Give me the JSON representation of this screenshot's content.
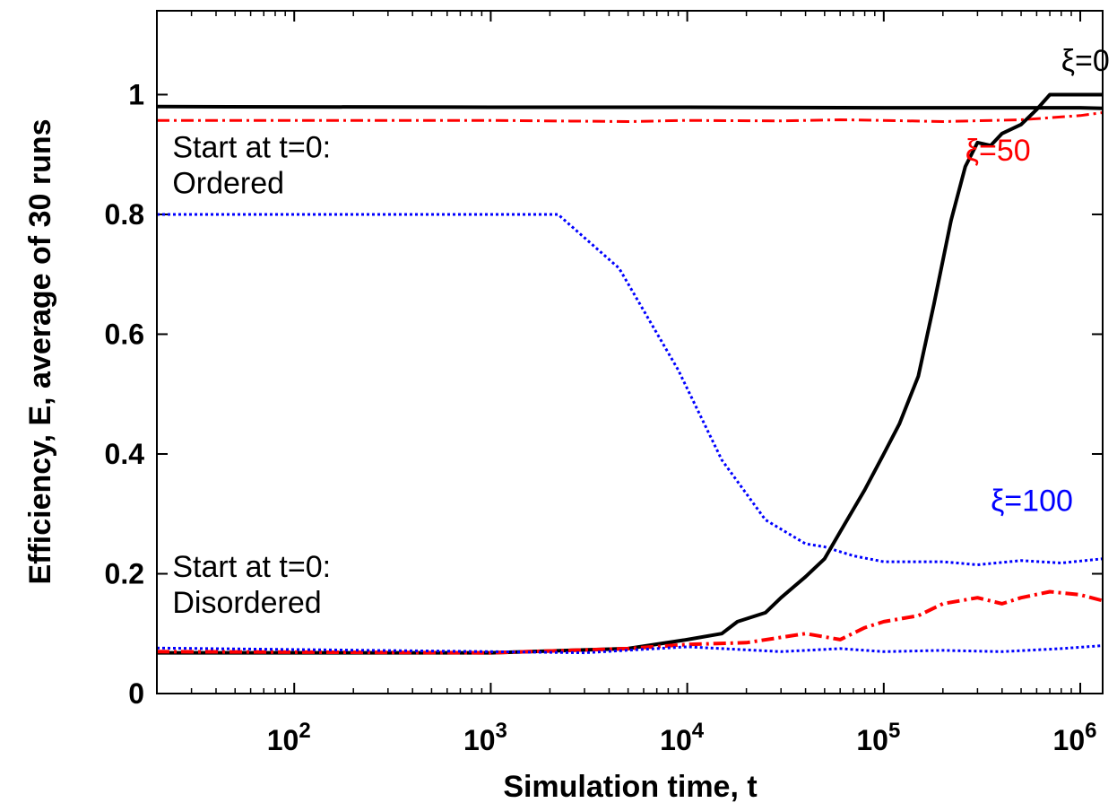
{
  "chart_data": {
    "type": "line",
    "xlabel": "Simulation time, t",
    "ylabel": "Efficiency, E, average of 30 runs",
    "xscale": "log",
    "xlim": [
      20,
      1300000
    ],
    "ylim": [
      0,
      1.14
    ],
    "grid": false,
    "y_ticks": [
      {
        "value": 0,
        "label": "0"
      },
      {
        "value": 0.2,
        "label": "0.2"
      },
      {
        "value": 0.4,
        "label": "0.4"
      },
      {
        "value": 0.6,
        "label": "0.6"
      },
      {
        "value": 0.8,
        "label": "0.8"
      },
      {
        "value": 1,
        "label": "1"
      }
    ],
    "x_ticks": [
      {
        "value": 100,
        "base": "10",
        "exp": "2"
      },
      {
        "value": 1000,
        "base": "10",
        "exp": "3"
      },
      {
        "value": 10000,
        "base": "10",
        "exp": "4"
      },
      {
        "value": 100000,
        "base": "10",
        "exp": "5"
      },
      {
        "value": 1000000,
        "base": "10",
        "exp": "6"
      }
    ],
    "annotations": [
      {
        "id": "xi0",
        "text": "ξ=0",
        "color": "#000000",
        "x": 800000,
        "y": 1.04
      },
      {
        "id": "xi50",
        "text": "ξ=50",
        "color": "#ff0000",
        "x": 260000,
        "y": 0.89
      },
      {
        "id": "xi100",
        "text": "ξ=100",
        "color": "#0000ff",
        "x": 350000,
        "y": 0.305
      },
      {
        "id": "ordered1",
        "text": "Start at t=0:",
        "color": "#000000",
        "x": 24,
        "y": 0.895
      },
      {
        "id": "ordered2",
        "text": "Ordered",
        "color": "#000000",
        "x": 24,
        "y": 0.835
      },
      {
        "id": "disordered1",
        "text": "Start at t=0:",
        "color": "#000000",
        "x": 24,
        "y": 0.195
      },
      {
        "id": "disordered2",
        "text": "Disordered",
        "color": "#000000",
        "x": 24,
        "y": 0.135
      }
    ],
    "series": [
      {
        "id": "xi0-ordered",
        "color": "#000000",
        "style": "solid",
        "width": 4,
        "x": [
          20,
          1000,
          10000,
          100000,
          1000000,
          1300000
        ],
        "y": [
          0.98,
          0.979,
          0.979,
          0.978,
          0.978,
          0.977
        ]
      },
      {
        "id": "xi50-ordered",
        "color": "#ff0000",
        "style": "dashdot",
        "width": 3,
        "x": [
          20,
          1000,
          5000,
          10000,
          30000,
          60000,
          100000,
          200000,
          500000,
          1000000,
          1300000
        ],
        "y": [
          0.957,
          0.957,
          0.955,
          0.957,
          0.956,
          0.958,
          0.957,
          0.955,
          0.958,
          0.965,
          0.97
        ]
      },
      {
        "id": "xi100-ordered",
        "color": "#0000ff",
        "style": "dotted",
        "width": 3,
        "x": [
          20,
          2200,
          4500,
          9000,
          15000,
          25000,
          40000,
          50000,
          70000,
          100000,
          200000,
          300000,
          500000,
          800000,
          1300000
        ],
        "y": [
          0.8,
          0.8,
          0.71,
          0.54,
          0.39,
          0.29,
          0.25,
          0.245,
          0.23,
          0.22,
          0.22,
          0.215,
          0.222,
          0.218,
          0.225
        ]
      },
      {
        "id": "xi0-disordered",
        "color": "#000000",
        "style": "solid",
        "width": 4,
        "x": [
          20,
          1000,
          5000,
          10000,
          15000,
          18000,
          25000,
          30000,
          40000,
          50000,
          60000,
          80000,
          100000,
          120000,
          150000,
          180000,
          220000,
          260000,
          300000,
          350000,
          400000,
          500000,
          600000,
          700000,
          1000000,
          1300000
        ],
        "y": [
          0.068,
          0.068,
          0.075,
          0.09,
          0.1,
          0.12,
          0.135,
          0.16,
          0.195,
          0.225,
          0.27,
          0.34,
          0.4,
          0.45,
          0.53,
          0.65,
          0.79,
          0.88,
          0.92,
          0.915,
          0.935,
          0.95,
          0.975,
          1.0,
          1.0,
          1.0
        ]
      },
      {
        "id": "xi50-disordered",
        "color": "#ff0000",
        "style": "dashdot",
        "width": 4,
        "x": [
          20,
          1000,
          5000,
          10000,
          20000,
          40000,
          60000,
          80000,
          100000,
          150000,
          200000,
          300000,
          400000,
          500000,
          700000,
          1000000,
          1300000
        ],
        "y": [
          0.07,
          0.068,
          0.075,
          0.082,
          0.085,
          0.1,
          0.09,
          0.11,
          0.12,
          0.13,
          0.15,
          0.16,
          0.15,
          0.16,
          0.17,
          0.165,
          0.155
        ]
      },
      {
        "id": "xi100-disordered",
        "color": "#0000ff",
        "style": "dotted",
        "width": 3,
        "x": [
          20,
          1000,
          3000,
          10000,
          30000,
          60000,
          100000,
          200000,
          400000,
          800000,
          1300000
        ],
        "y": [
          0.076,
          0.07,
          0.068,
          0.078,
          0.07,
          0.075,
          0.07,
          0.072,
          0.07,
          0.075,
          0.08
        ]
      }
    ]
  }
}
